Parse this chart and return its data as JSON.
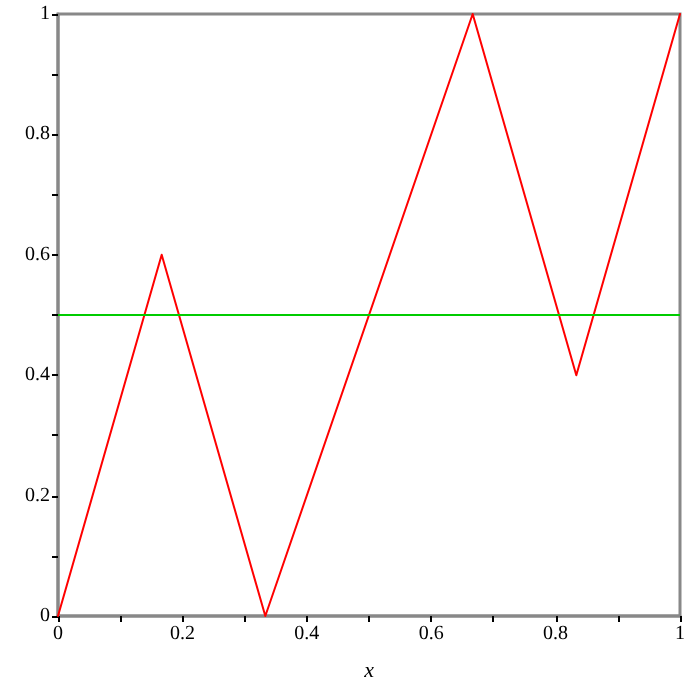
{
  "chart_data": {
    "type": "line",
    "xlabel": "x",
    "series": [
      {
        "color": "#ff0000",
        "x": [
          0,
          0.1667,
          0.3333,
          0.6667,
          0.8333,
          1
        ],
        "values": [
          0,
          0.6,
          0,
          1,
          0.4,
          1
        ]
      }
    ],
    "ref_lines": [
      {
        "axis": "y",
        "value": 0.5,
        "color": "#00cc00"
      }
    ],
    "xlim": [
      0,
      1
    ],
    "ylim": [
      0,
      1
    ],
    "xticks": [
      0,
      {
        "value": 0.1,
        "label": null
      },
      0.2,
      {
        "value": 0.3,
        "label": null
      },
      0.4,
      {
        "value": 0.5,
        "label": null
      },
      0.6,
      {
        "value": 0.7,
        "label": null
      },
      0.8,
      {
        "value": 0.9,
        "label": null
      },
      1
    ],
    "yticks": [
      0,
      {
        "value": 0.1,
        "label": null
      },
      0.2,
      {
        "value": 0.3,
        "label": null
      },
      0.4,
      {
        "value": 0.5,
        "label": null
      },
      0.6,
      {
        "value": 0.7,
        "label": null
      },
      0.8,
      {
        "value": 0.9,
        "label": null
      },
      1
    ],
    "grid": false,
    "marker": "none",
    "line_style": "solid"
  }
}
